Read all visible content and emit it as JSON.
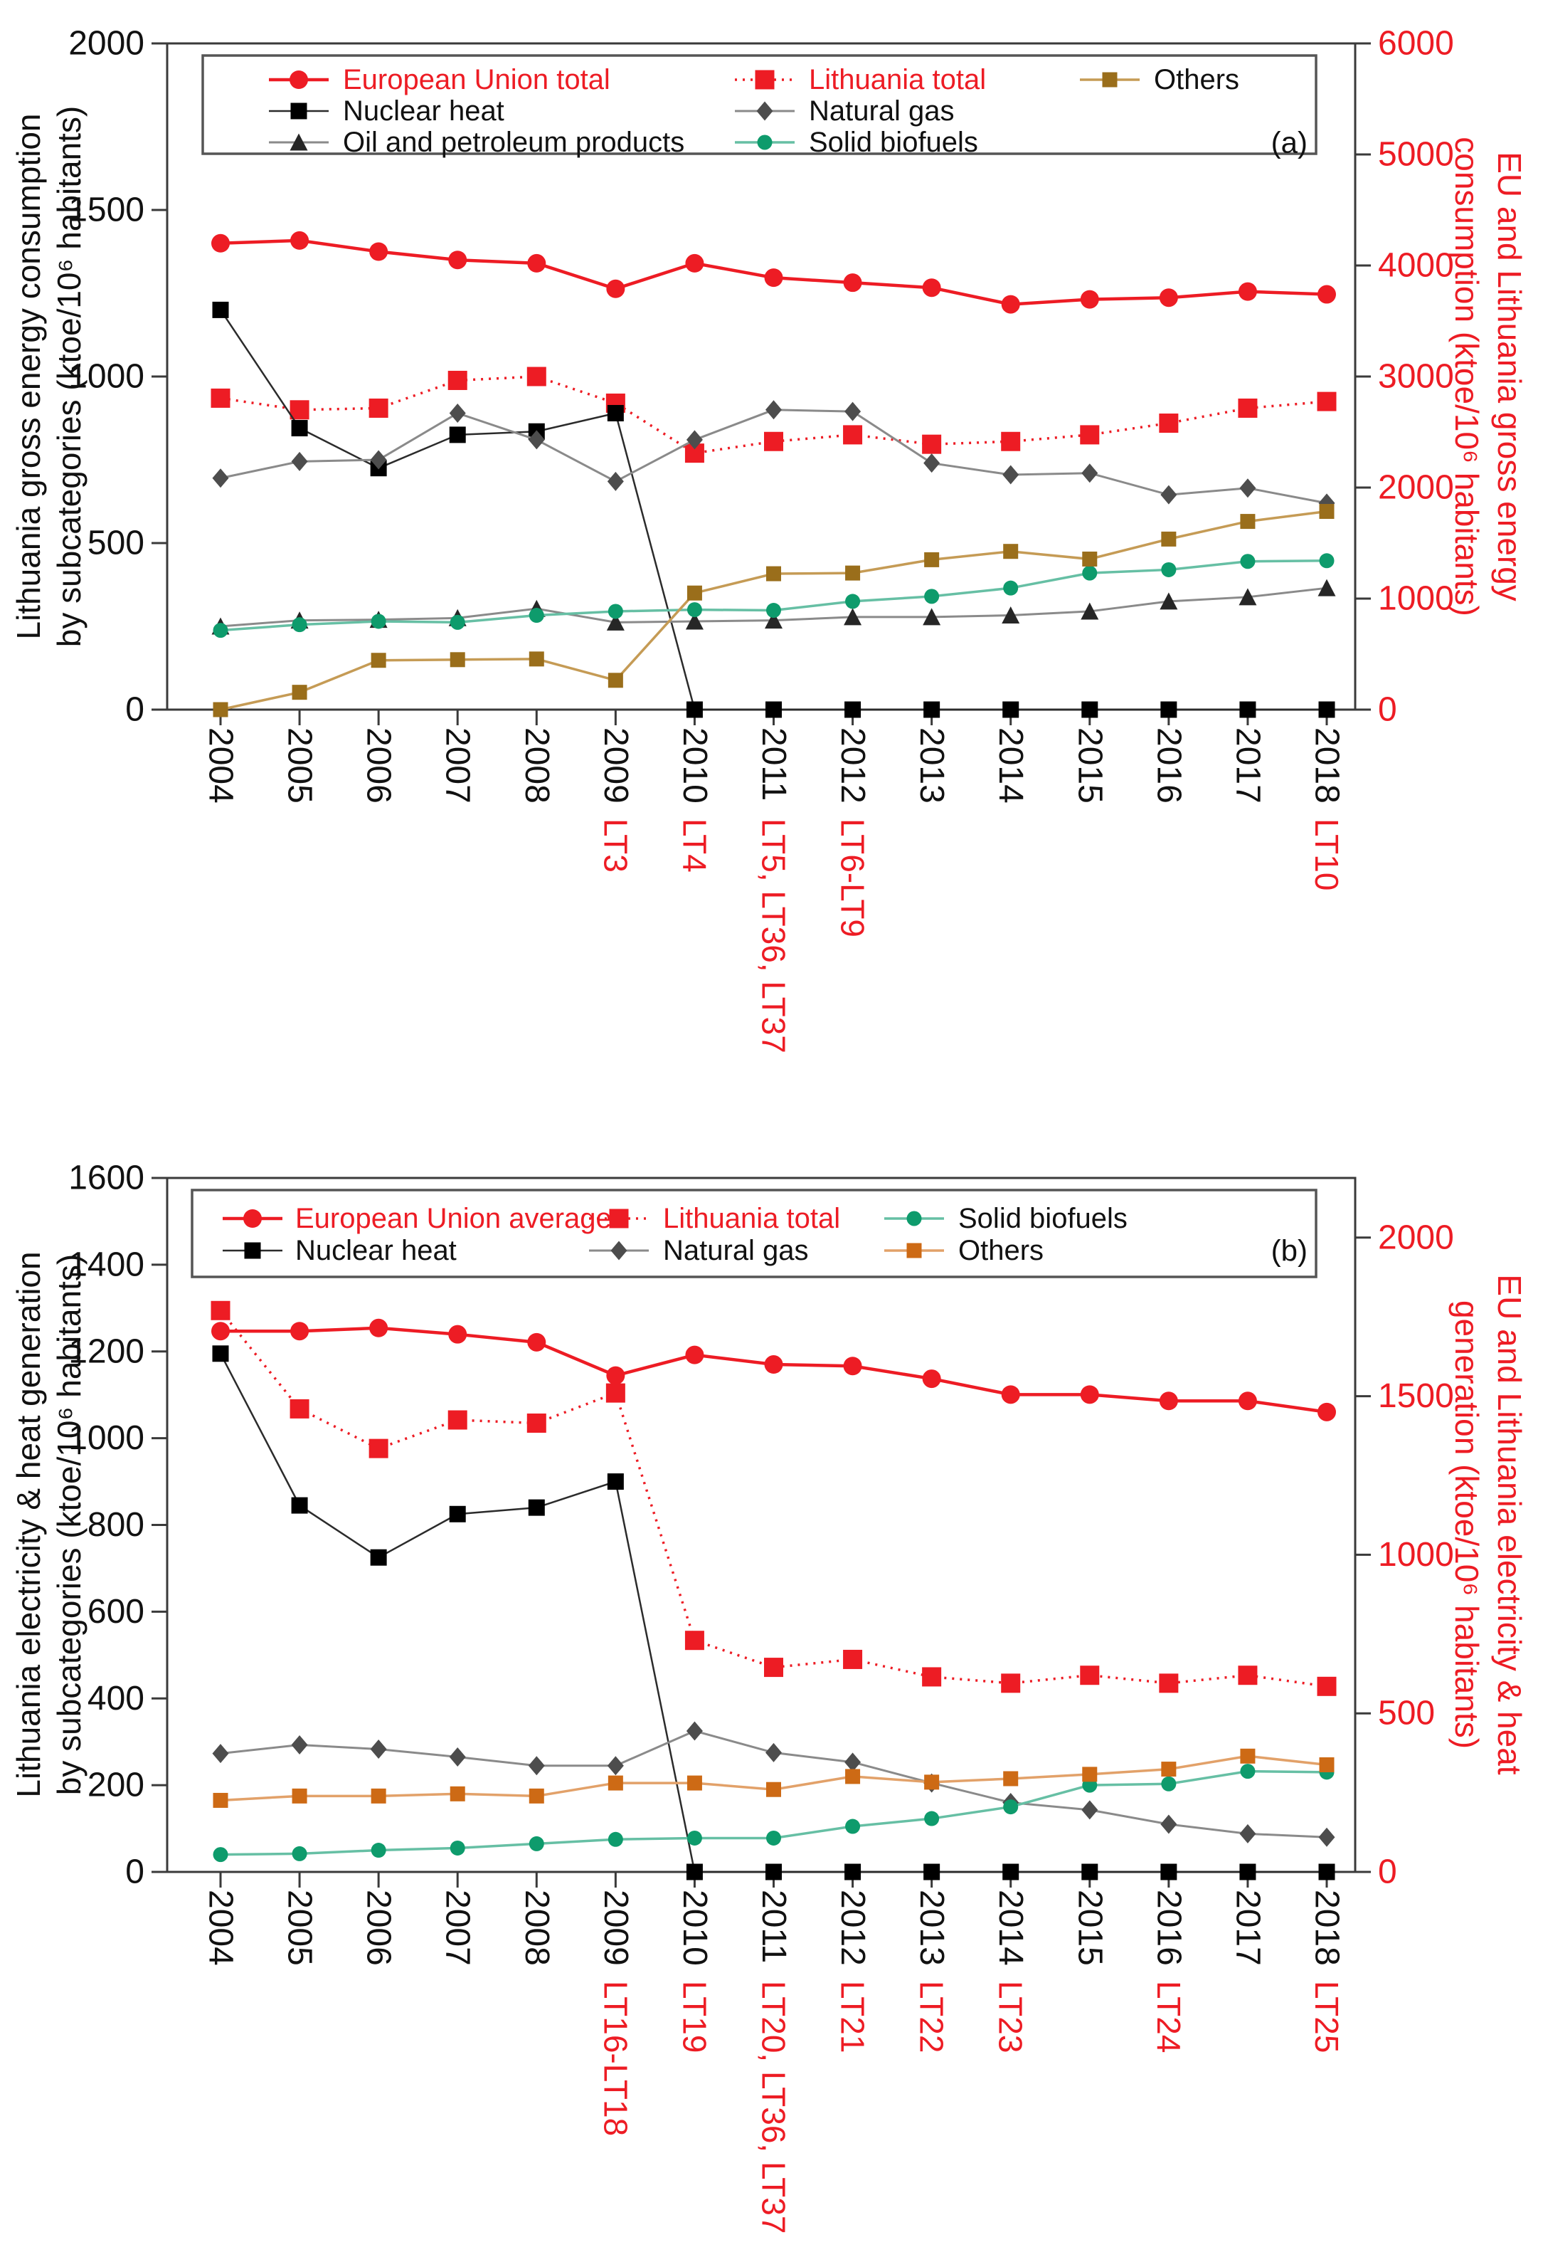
{
  "accent_red": "#ED1C24",
  "text_color": "#111111",
  "axis_color": "#3a3a3a",
  "chart_data": [
    {
      "type": "line",
      "panel_label": "(a)",
      "ylabel_left_lines": [
        "Lithuania gross energy consumption",
        "by subcategories (ktoe/10⁶ habitants)"
      ],
      "ylabel_right_lines": [
        "EU and Lithuania gross energy",
        "consumption (ktoe/10⁶ habitants)"
      ],
      "left_axis": {
        "min": 0,
        "max": 2000,
        "ticks": [
          0,
          500,
          1000,
          1500,
          2000
        ]
      },
      "right_axis": {
        "min": 0,
        "max": 6000,
        "ticks": [
          0,
          1000,
          2000,
          3000,
          4000,
          5000,
          6000
        ]
      },
      "x": [
        2004,
        2005,
        2006,
        2007,
        2008,
        2009,
        2010,
        2011,
        2012,
        2013,
        2014,
        2015,
        2016,
        2017,
        2018
      ],
      "x_red_annotations": [
        {
          "year": 2009,
          "label": "LT3"
        },
        {
          "year": 2010,
          "label": "LT4"
        },
        {
          "year": 2011,
          "label": "LT5, LT36, LT37"
        },
        {
          "year": 2012,
          "label": "LT6-LT9"
        },
        {
          "year": 2018,
          "label": "LT10"
        }
      ],
      "series": [
        {
          "name": "European Union total",
          "axis": "right",
          "values": [
            4200,
            4225,
            4125,
            4050,
            4020,
            3790,
            4020,
            3890,
            3845,
            3800,
            3650,
            3695,
            3710,
            3765,
            3740
          ],
          "line": {
            "color": "#ED1C24",
            "width": 4.5,
            "style": "solid"
          },
          "marker": {
            "shape": "circle",
            "size": 26,
            "color": "#ED1C24"
          },
          "legend": {
            "col": 0,
            "row": 0,
            "text_color": "#ED1C24"
          }
        },
        {
          "name": "Lithuania total",
          "axis": "right",
          "values": [
            2805,
            2700,
            2715,
            2965,
            3000,
            2760,
            2310,
            2415,
            2475,
            2390,
            2415,
            2475,
            2580,
            2715,
            2775
          ],
          "line": {
            "color": "#ED1C24",
            "width": 3.5,
            "style": "dotted"
          },
          "marker": {
            "shape": "square",
            "size": 27,
            "color": "#ED1C24"
          },
          "legend": {
            "col": 1,
            "row": 0,
            "text_color": "#ED1C24"
          }
        },
        {
          "name": "Nuclear heat",
          "axis": "left",
          "values": [
            1200,
            845,
            725,
            825,
            835,
            890,
            0,
            0,
            0,
            0,
            0,
            0,
            0,
            0,
            0
          ],
          "line": {
            "color": "#2b2b2b",
            "width": 2.5,
            "style": "solid"
          },
          "marker": {
            "shape": "square",
            "size": 23,
            "color": "#000000"
          },
          "legend": {
            "col": 0,
            "row": 1,
            "text_color": "#111111"
          }
        },
        {
          "name": "Natural gas",
          "axis": "left",
          "values": [
            695,
            745,
            750,
            890,
            810,
            685,
            810,
            900,
            895,
            740,
            705,
            710,
            645,
            665,
            620
          ],
          "line": {
            "color": "#8a8a8a",
            "width": 3,
            "style": "solid"
          },
          "marker": {
            "shape": "diamond",
            "size": 23,
            "color": "#4d4d4d"
          },
          "legend": {
            "col": 1,
            "row": 1,
            "text_color": "#111111"
          }
        },
        {
          "name": "Oil and petroleum products",
          "axis": "left",
          "values": [
            250,
            268,
            270,
            275,
            303,
            262,
            265,
            268,
            278,
            278,
            283,
            295,
            325,
            338,
            365
          ],
          "line": {
            "color": "#8a8a8a",
            "width": 3,
            "style": "solid"
          },
          "marker": {
            "shape": "triangle",
            "size": 23,
            "color": "#262626"
          },
          "legend": {
            "col": 0,
            "row": 2,
            "text_color": "#111111"
          }
        },
        {
          "name": "Solid biofuels",
          "axis": "left",
          "values": [
            238,
            255,
            265,
            262,
            283,
            295,
            300,
            298,
            325,
            340,
            365,
            410,
            420,
            445,
            447
          ],
          "line": {
            "color": "#66BFA4",
            "width": 3.5,
            "style": "solid"
          },
          "marker": {
            "shape": "circle",
            "size": 21,
            "color": "#0E9B6C"
          },
          "legend": {
            "col": 1,
            "row": 2,
            "text_color": "#111111"
          }
        },
        {
          "name": "Others",
          "axis": "left",
          "values": [
            0,
            52,
            148,
            150,
            152,
            88,
            350,
            408,
            410,
            450,
            475,
            452,
            512,
            565,
            595
          ],
          "line": {
            "color": "#C59B55",
            "width": 3.5,
            "style": "solid"
          },
          "marker": {
            "shape": "square",
            "size": 21,
            "color": "#9A6E1B"
          },
          "legend": {
            "col": 2,
            "row": 0,
            "text_color": "#111111"
          }
        }
      ]
    },
    {
      "type": "line",
      "panel_label": "(b)",
      "ylabel_left_lines": [
        "Lithuania electricity & heat generation",
        "by subcategories (ktoe/10⁶ habitants)"
      ],
      "ylabel_right_lines": [
        "EU and Lithuania  electricity & heat",
        "generation (ktoe/10⁶ habitants)"
      ],
      "left_axis": {
        "min": 0,
        "max": 1600,
        "ticks": [
          0,
          200,
          400,
          600,
          800,
          1000,
          1200,
          1400,
          1600
        ]
      },
      "right_axis": {
        "min": 0,
        "max": 2188,
        "ticks": [
          0,
          500,
          1000,
          1500,
          2000
        ]
      },
      "x": [
        2004,
        2005,
        2006,
        2007,
        2008,
        2009,
        2010,
        2011,
        2012,
        2013,
        2014,
        2015,
        2016,
        2017,
        2018
      ],
      "x_red_annotations": [
        {
          "year": 2009,
          "label": "LT16-LT18"
        },
        {
          "year": 2010,
          "label": "LT19"
        },
        {
          "year": 2011,
          "label": "LT20, LT36, LT37"
        },
        {
          "year": 2012,
          "label": "LT21"
        },
        {
          "year": 2013,
          "label": "LT22"
        },
        {
          "year": 2014,
          "label": "LT23"
        },
        {
          "year": 2016,
          "label": "LT24"
        },
        {
          "year": 2018,
          "label": "LT25"
        }
      ],
      "series": [
        {
          "name": "European Union average",
          "axis": "right",
          "values": [
            1705,
            1705,
            1715,
            1695,
            1670,
            1565,
            1630,
            1600,
            1595,
            1555,
            1505,
            1505,
            1485,
            1485,
            1450
          ],
          "line": {
            "color": "#ED1C24",
            "width": 4.5,
            "style": "solid"
          },
          "marker": {
            "shape": "circle",
            "size": 26,
            "color": "#ED1C24"
          },
          "legend": {
            "col": 0,
            "row": 0,
            "text_color": "#ED1C24"
          }
        },
        {
          "name": "Lithuania total",
          "axis": "right",
          "values": [
            1770,
            1460,
            1335,
            1425,
            1415,
            1510,
            730,
            645,
            670,
            615,
            595,
            620,
            595,
            620,
            585
          ],
          "line": {
            "color": "#ED1C24",
            "width": 3.5,
            "style": "dotted"
          },
          "marker": {
            "shape": "square",
            "size": 27,
            "color": "#ED1C24"
          },
          "legend": {
            "col": 1,
            "row": 0,
            "text_color": "#ED1C24"
          }
        },
        {
          "name": "Nuclear heat",
          "axis": "left",
          "values": [
            1195,
            845,
            725,
            825,
            840,
            900,
            0,
            0,
            0,
            0,
            0,
            0,
            0,
            0,
            0
          ],
          "line": {
            "color": "#2b2b2b",
            "width": 2.5,
            "style": "solid"
          },
          "marker": {
            "shape": "square",
            "size": 23,
            "color": "#000000"
          },
          "legend": {
            "col": 0,
            "row": 1,
            "text_color": "#111111"
          }
        },
        {
          "name": "Natural gas",
          "axis": "left",
          "values": [
            273,
            293,
            283,
            265,
            245,
            245,
            325,
            275,
            253,
            205,
            160,
            143,
            110,
            88,
            80
          ],
          "line": {
            "color": "#8a8a8a",
            "width": 3,
            "style": "solid"
          },
          "marker": {
            "shape": "diamond",
            "size": 23,
            "color": "#4d4d4d"
          },
          "legend": {
            "col": 1,
            "row": 1,
            "text_color": "#111111"
          }
        },
        {
          "name": "Solid biofuels",
          "axis": "left",
          "values": [
            40,
            42,
            50,
            55,
            65,
            75,
            78,
            78,
            105,
            123,
            150,
            200,
            203,
            232,
            230
          ],
          "line": {
            "color": "#66BFA4",
            "width": 3.5,
            "style": "solid"
          },
          "marker": {
            "shape": "circle",
            "size": 21,
            "color": "#0E9B6C"
          },
          "legend": {
            "col": 2,
            "row": 0,
            "text_color": "#111111"
          }
        },
        {
          "name": "Others",
          "axis": "left",
          "values": [
            165,
            175,
            175,
            180,
            175,
            205,
            205,
            190,
            220,
            207,
            215,
            225,
            237,
            267,
            247
          ],
          "line": {
            "color": "#E2A169",
            "width": 3.5,
            "style": "solid"
          },
          "marker": {
            "shape": "square",
            "size": 21,
            "color": "#CD6A15"
          },
          "legend": {
            "col": 2,
            "row": 1,
            "text_color": "#111111"
          }
        }
      ]
    }
  ]
}
